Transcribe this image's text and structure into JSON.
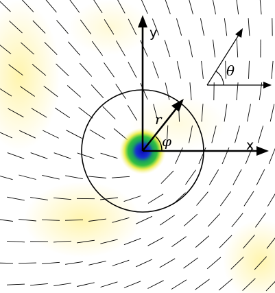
{
  "labels": {
    "x_axis": "x",
    "y_axis": "y",
    "radius": "r",
    "azimuth": "φ",
    "orientation": "θ"
  },
  "colors": {
    "background": "#ffffff",
    "field_glow": "#fff6b0",
    "core_outer": "#f2f060",
    "core_mid": "#2db84a",
    "core_inner": "#1010c8",
    "lines": "#000000"
  }
}
